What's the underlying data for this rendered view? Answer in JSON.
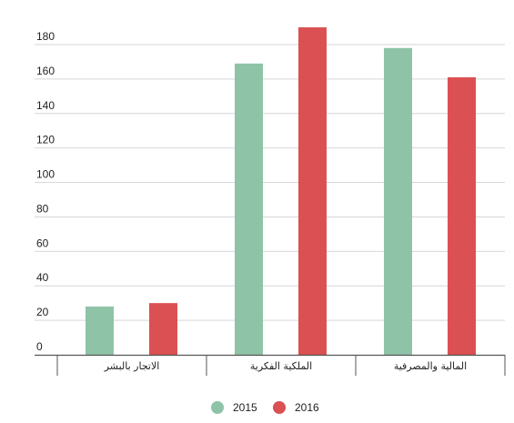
{
  "chart_data": {
    "type": "bar",
    "categories": [
      "الاتجار بالبشر",
      "الملكية الفكرية",
      "المالية والمصرفية"
    ],
    "series": [
      {
        "name": "2015",
        "values": [
          28,
          169,
          178
        ]
      },
      {
        "name": "2016",
        "values": [
          30,
          190,
          161
        ]
      }
    ],
    "ylim": [
      0,
      180
    ],
    "yticks": [
      0,
      20,
      40,
      60,
      80,
      100,
      120,
      140,
      160,
      180
    ],
    "grid": true,
    "legend": "bottom",
    "colors": [
      "#8fc3a7",
      "#db5052"
    ],
    "title": "",
    "xlabel": "",
    "ylabel": ""
  }
}
